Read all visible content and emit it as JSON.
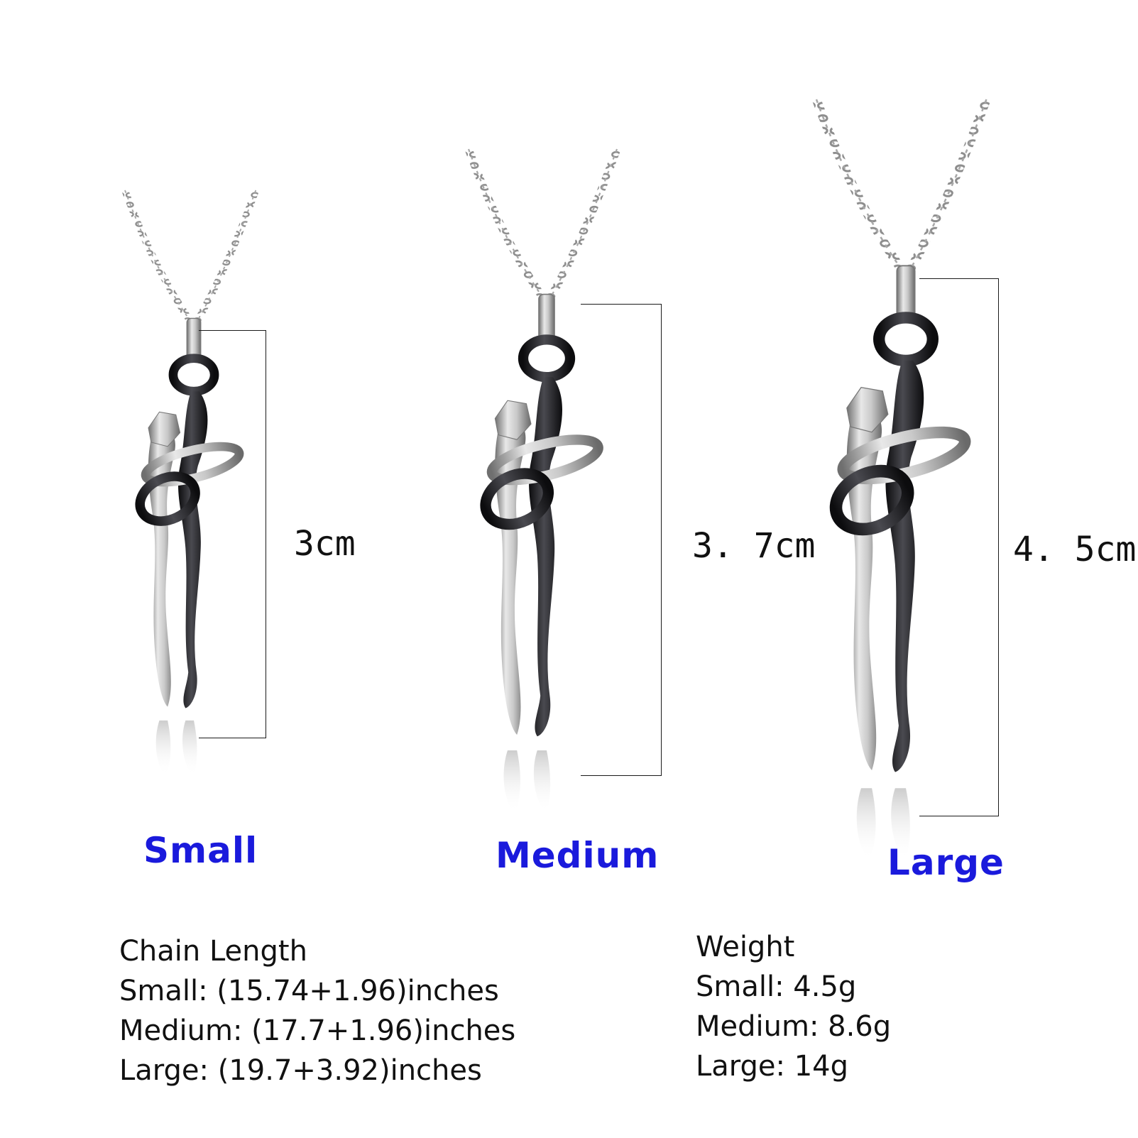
{
  "products": [
    {
      "size_label": "Small",
      "dimension": "3cm"
    },
    {
      "size_label": "Medium",
      "dimension": "3. 7cm"
    },
    {
      "size_label": "Large",
      "dimension": "4. 5cm"
    }
  ],
  "specs": {
    "chain": {
      "heading": "Chain Length",
      "lines": [
        "Small: (15.74+1.96)inches",
        "Medium: (17.7+1.96)inches",
        "Large: (19.7+3.92)inches"
      ]
    },
    "weight": {
      "heading": "Weight",
      "lines": [
        "Small: 4.5g",
        "Medium: 8.6g",
        "Large: 14g"
      ]
    }
  },
  "colors": {
    "size_label": "#1a1adc",
    "silver": "#b8b8b8",
    "black": "#1c1c1e"
  },
  "icons": {
    "pendant": "embracing-couple-pendant"
  }
}
